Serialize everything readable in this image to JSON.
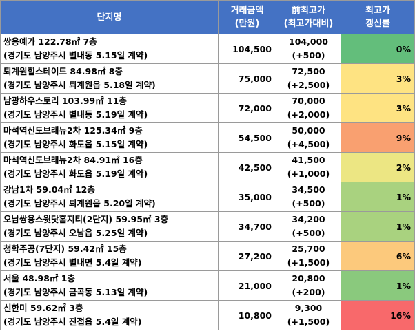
{
  "headers": {
    "name": "단지명",
    "amount_line1": "거래금액",
    "amount_line2": "(만원)",
    "prev_line1": "前최고가",
    "prev_line2": "(최고가대비)",
    "rate_line1": "최고가",
    "rate_line2": "갱신률"
  },
  "rows": [
    {
      "name": "쌍용예가 122.78㎡ 7층",
      "location": "(경기도 남양주시 별내동 5.15일 계약)",
      "amount": "104,500",
      "prev": "104,000",
      "diff": "(+500)",
      "rate": "0%",
      "color": "#63be7b"
    },
    {
      "name": "퇴계원힐스테이트 84.98㎡ 8층",
      "location": "(경기도 남양주시 퇴계원읍 5.18일 계약)",
      "amount": "75,000",
      "prev": "72,500",
      "diff": "(+2,500)",
      "rate": "3%",
      "color": "#fee382"
    },
    {
      "name": "남광하우스토리 103.99㎡ 11층",
      "location": "(경기도 남양주시 별내동 5.19일 계약)",
      "amount": "72,000",
      "prev": "70,000",
      "diff": "(+2,000)",
      "rate": "3%",
      "color": "#fee382"
    },
    {
      "name": "마석역신도브래뉴2차 125.34㎡ 9층",
      "location": "(경기도 남양주시 화도읍 5.15일 계약)",
      "amount": "54,500",
      "prev": "50,000",
      "diff": "(+4,500)",
      "rate": "9%",
      "color": "#f9a070"
    },
    {
      "name": "마석역신도브래뉴2차 84.91㎡ 16층",
      "location": "(경기도 남양주시 화도읍 5.19일 계약)",
      "amount": "42,500",
      "prev": "41,500",
      "diff": "(+1,000)",
      "rate": "2%",
      "color": "#ece683"
    },
    {
      "name": "강남1차 59.04㎡ 12층",
      "location": "(경기도 남양주시 퇴계원읍 5.20일 계약)",
      "amount": "35,000",
      "prev": "34,500",
      "diff": "(+500)",
      "rate": "1%",
      "color": "#a9d27f"
    },
    {
      "name": "오남쌍용스윗닷홈지티(2단지) 59.95㎡ 3층",
      "location": "(경기도 남양주시 오남읍 5.25일 계약)",
      "amount": "34,700",
      "prev": "34,200",
      "diff": "(+500)",
      "rate": "1%",
      "color": "#a9d27f"
    },
    {
      "name": "청학주공(7단지) 59.42㎡ 15층",
      "location": "(경기도 남양주시 별내면 5.4일 계약)",
      "amount": "27,200",
      "prev": "25,700",
      "diff": "(+1,500)",
      "rate": "6%",
      "color": "#fcc97c"
    },
    {
      "name": "서울 48.98㎡ 1층",
      "location": "(경기도 남양주시 금곡동 5.13일 계약)",
      "amount": "21,000",
      "prev": "20,800",
      "diff": "(+200)",
      "rate": "1%",
      "color": "#8ac97d"
    },
    {
      "name": "신한미 59.62㎡ 3층",
      "location": "(경기도 남양주시 진접읍 5.4일 계약)",
      "amount": "10,800",
      "prev": "9,300",
      "diff": "(+1,500)",
      "rate": "16%",
      "color": "#f8696b"
    }
  ]
}
